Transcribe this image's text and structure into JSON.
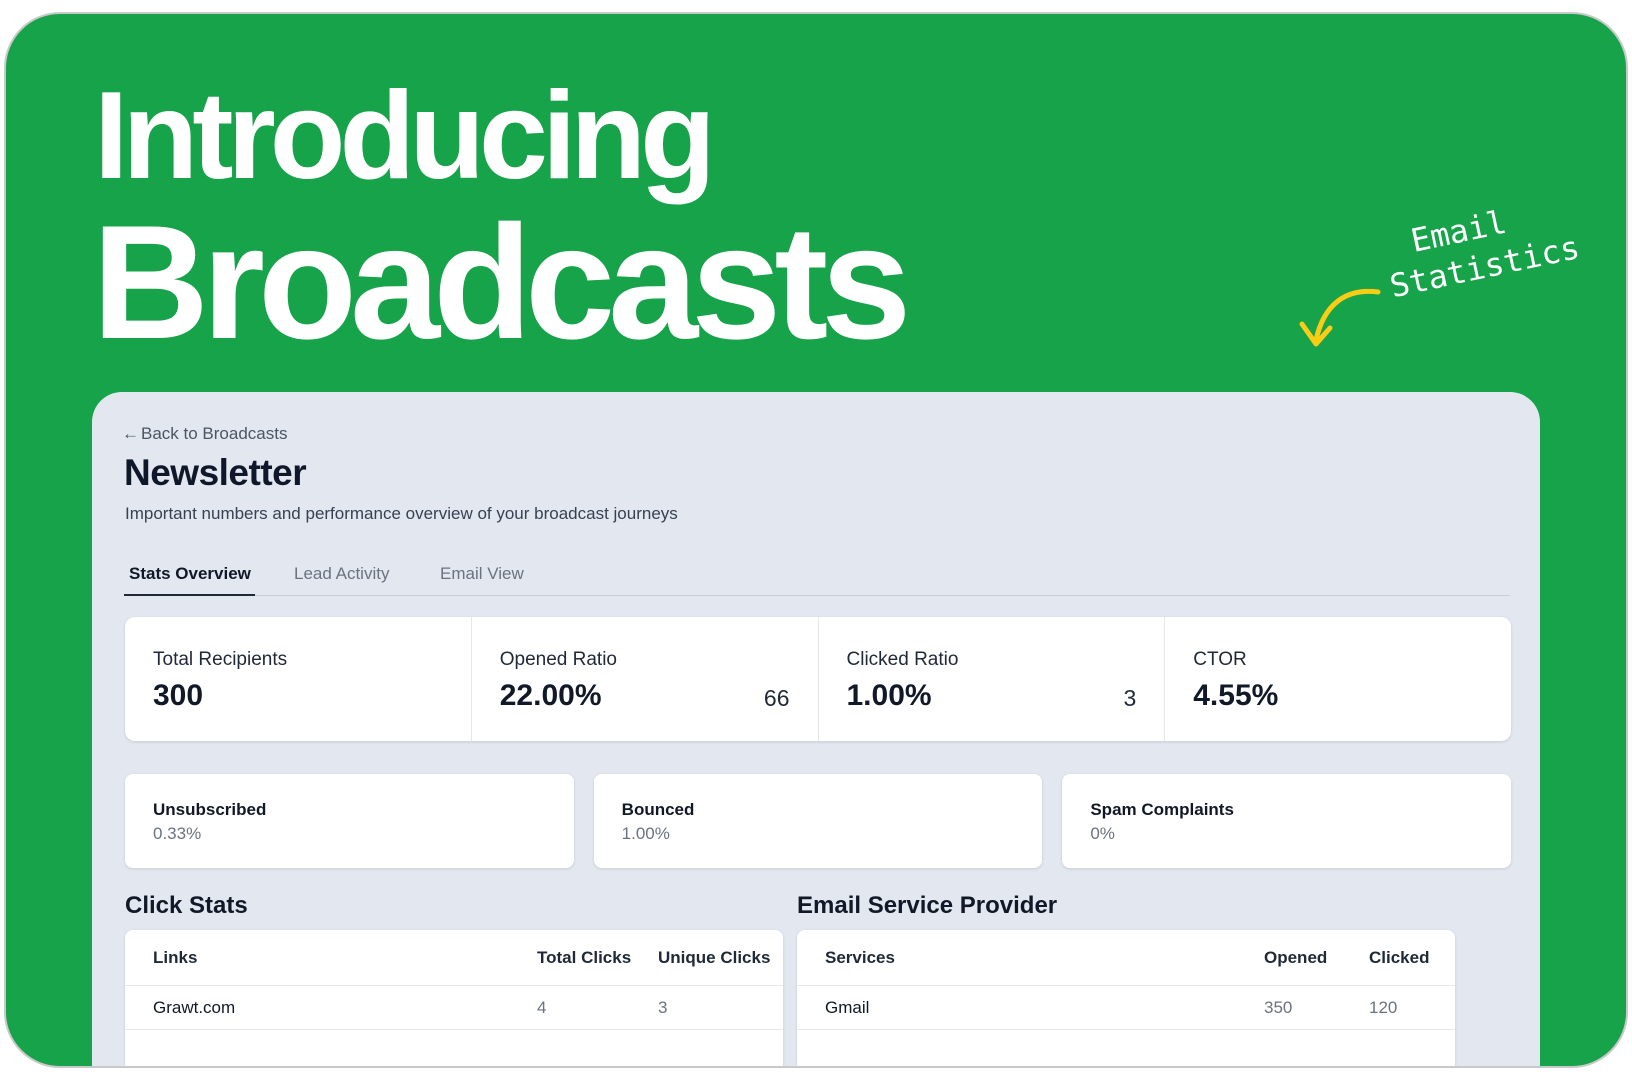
{
  "hero": {
    "line1": "Introducing",
    "line2": "Broadcasts",
    "annotation_line1": "Email",
    "annotation_line2": "Statistics",
    "annotation_color": "#facc15",
    "background": "#17a34a"
  },
  "back_link": {
    "arrow": "←",
    "label": "Back to Broadcasts"
  },
  "page": {
    "title": "Newsletter",
    "subtitle": "Important numbers and performance overview of your broadcast journeys"
  },
  "tabs": [
    {
      "label": "Stats Overview",
      "active": true
    },
    {
      "label": "Lead Activity",
      "active": false
    },
    {
      "label": "Email View",
      "active": false
    }
  ],
  "stats": [
    {
      "label": "Total Recipients",
      "value": "300",
      "count": ""
    },
    {
      "label": "Opened Ratio",
      "value": "22.00%",
      "count": "66"
    },
    {
      "label": "Clicked Ratio",
      "value": "1.00%",
      "count": "3"
    },
    {
      "label": "CTOR",
      "value": "4.55%",
      "count": ""
    }
  ],
  "mini_stats": [
    {
      "label": "Unsubscribed",
      "value": "0.33%"
    },
    {
      "label": "Bounced",
      "value": "1.00%"
    },
    {
      "label": "Spam Complaints",
      "value": "0%"
    }
  ],
  "click_stats": {
    "title": "Click Stats",
    "headers": [
      "Links",
      "Total Clicks",
      "Unique Clicks"
    ],
    "rows": [
      [
        "Grawt.com",
        "4",
        "3"
      ]
    ]
  },
  "esp": {
    "title": "Email Service Provider",
    "headers": [
      "Services",
      "Opened",
      "Clicked"
    ],
    "rows": [
      [
        "Gmail",
        "350",
        "120"
      ]
    ]
  }
}
